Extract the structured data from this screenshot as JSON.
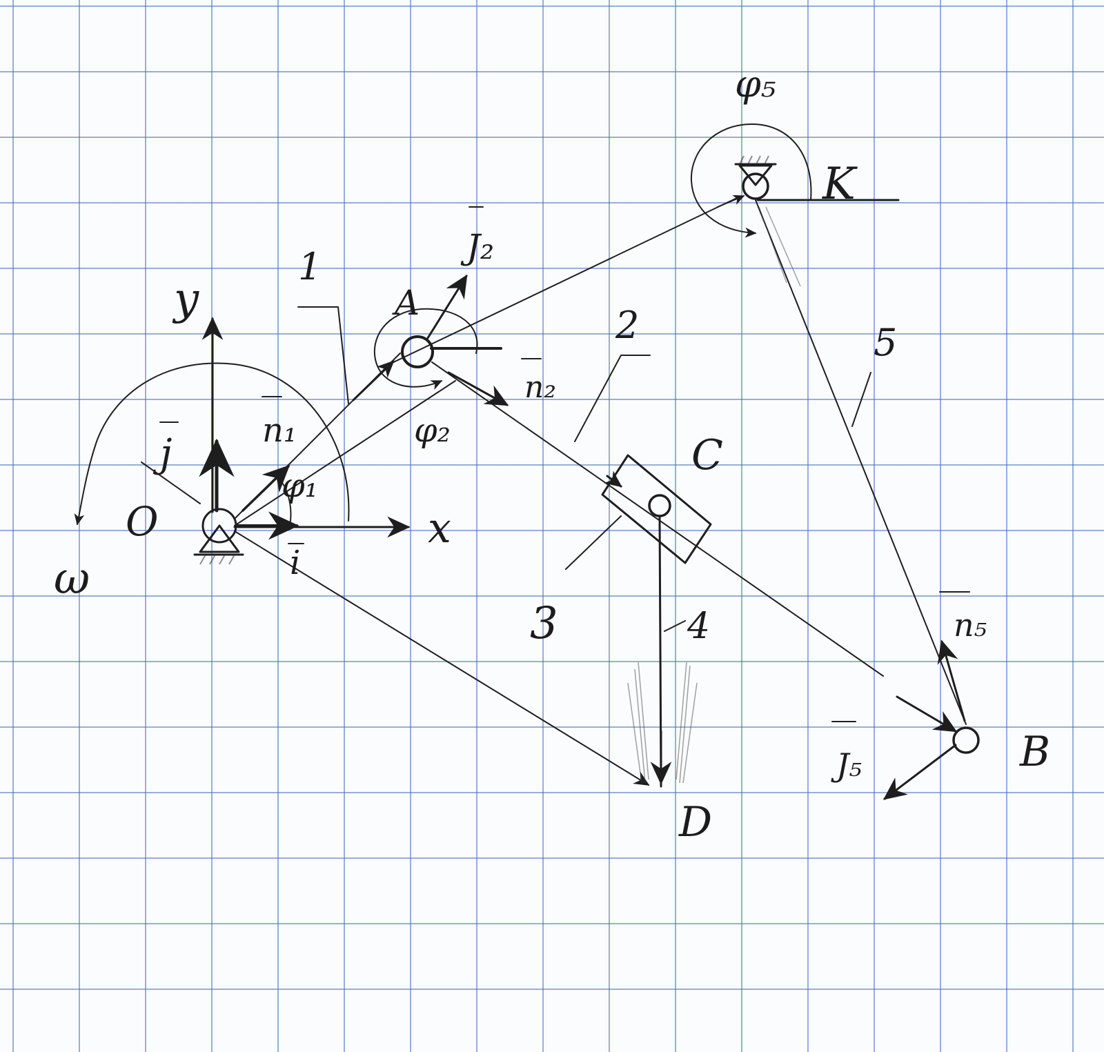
{
  "diagram": {
    "labels": {
      "axis_y": "y",
      "axis_x": "x",
      "origin": "O",
      "omega": "ω",
      "unit_i": "i",
      "unit_j": "j",
      "angle_phi1": "φ₁",
      "angle_phi2": "φ₂",
      "angle_phi5": "φ₅",
      "n1": "n₁",
      "n2": "n₂",
      "n5": "n₅",
      "J2": "J₂",
      "J5": "J₅",
      "point_A": "A",
      "point_C": "C",
      "point_K": "K",
      "point_B": "B",
      "point_D": "D",
      "link_1": "1",
      "link_2": "2",
      "link_3": "3",
      "link_4": "4",
      "link_5": "5"
    },
    "colors": {
      "ink": "#1e1e1e",
      "grid": "#466eb9",
      "paper": "#fbfcfd"
    }
  }
}
